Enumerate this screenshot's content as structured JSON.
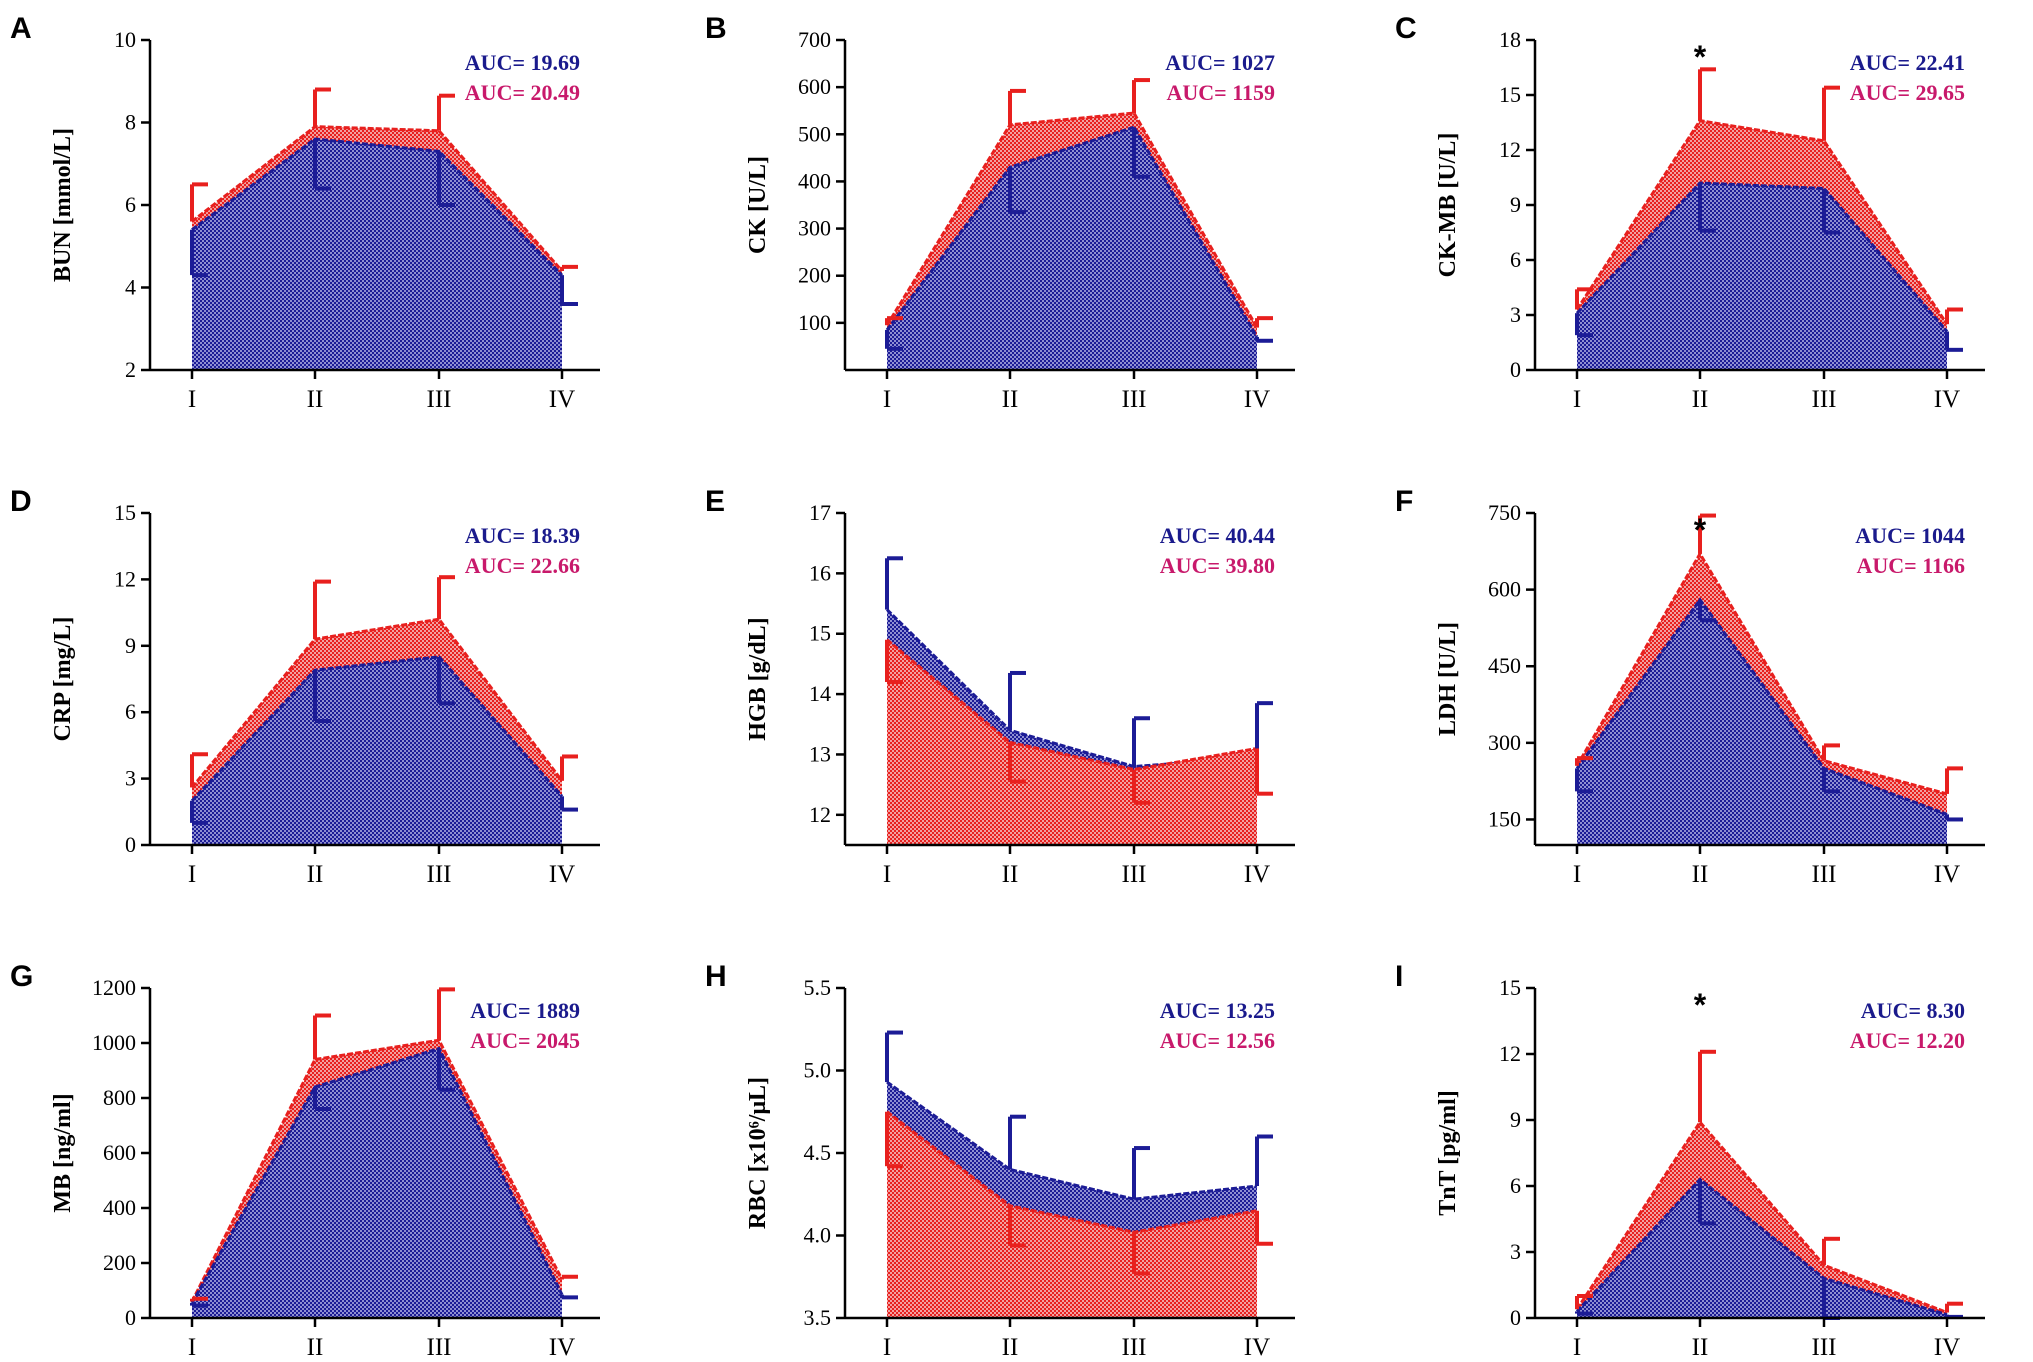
{
  "chart_data": [
    {
      "panel": "A",
      "type": "area",
      "ylabel": "BUN [mmol/L]",
      "categories": [
        "I",
        "II",
        "III",
        "IV"
      ],
      "ylim": [
        2,
        10
      ],
      "yticks": [
        "2",
        "4",
        "6",
        "8",
        "10"
      ],
      "series": [
        {
          "name": "blue",
          "values": [
            5.4,
            7.6,
            7.3,
            4.3
          ],
          "errors": [
            1.1,
            1.2,
            1.3,
            0.7
          ],
          "auc": "AUC= 19.69",
          "error_dir": "down"
        },
        {
          "name": "red",
          "values": [
            5.6,
            7.9,
            7.8,
            4.4
          ],
          "errors": [
            0.9,
            0.9,
            0.85,
            0.1
          ],
          "auc": "AUC= 20.49",
          "error_dir": "up"
        }
      ],
      "annotations": []
    },
    {
      "panel": "B",
      "type": "area",
      "ylabel": "CK [U/L]",
      "categories": [
        "I",
        "II",
        "III",
        "IV"
      ],
      "ylim": [
        0,
        700
      ],
      "yticks": [
        "100",
        "200",
        "300",
        "400",
        "500",
        "600",
        "700"
      ],
      "series": [
        {
          "name": "blue",
          "values": [
            85,
            430,
            515,
            70
          ],
          "errors": [
            40,
            95,
            105,
            8
          ],
          "auc": "AUC= 1027",
          "error_dir": "down"
        },
        {
          "name": "red",
          "values": [
            95,
            520,
            545,
            90
          ],
          "errors": [
            15,
            72,
            70,
            20
          ],
          "auc": "AUC= 1159",
          "error_dir": "up"
        }
      ],
      "annotations": []
    },
    {
      "panel": "C",
      "type": "area",
      "ylabel": "CK-MB [U/L]",
      "categories": [
        "I",
        "II",
        "III",
        "IV"
      ],
      "ylim": [
        0,
        18
      ],
      "yticks": [
        "0",
        "3",
        "6",
        "9",
        "12",
        "15",
        "18"
      ],
      "series": [
        {
          "name": "blue",
          "values": [
            3.1,
            10.2,
            9.9,
            2.1
          ],
          "errors": [
            1.2,
            2.6,
            2.4,
            1.0
          ],
          "auc": "AUC= 22.41",
          "error_dir": "down"
        },
        {
          "name": "red",
          "values": [
            3.3,
            13.6,
            12.5,
            2.5
          ],
          "errors": [
            1.1,
            2.8,
            2.9,
            0.8
          ],
          "auc": "AUC= 29.65",
          "error_dir": "up"
        }
      ],
      "annotations": [
        {
          "category": "II",
          "text": "*"
        }
      ]
    },
    {
      "panel": "D",
      "type": "area",
      "ylabel": "CRP [mg/L]",
      "categories": [
        "I",
        "II",
        "III",
        "IV"
      ],
      "ylim": [
        0,
        15
      ],
      "yticks": [
        "0",
        "3",
        "6",
        "9",
        "12",
        "15"
      ],
      "series": [
        {
          "name": "blue",
          "values": [
            2.0,
            7.9,
            8.5,
            2.2
          ],
          "errors": [
            1.0,
            2.3,
            2.1,
            0.6
          ],
          "auc": "AUC= 18.39",
          "error_dir": "down"
        },
        {
          "name": "red",
          "values": [
            2.6,
            9.3,
            10.2,
            2.9
          ],
          "errors": [
            1.5,
            2.6,
            1.9,
            1.1
          ],
          "auc": "AUC= 22.66",
          "error_dir": "up"
        }
      ],
      "annotations": []
    },
    {
      "panel": "E",
      "type": "area",
      "ylabel": "HGB [g/dL]",
      "categories": [
        "I",
        "II",
        "III",
        "IV"
      ],
      "ylim": [
        11.5,
        17
      ],
      "yticks": [
        "12",
        "13",
        "14",
        "15",
        "16",
        "17"
      ],
      "series": [
        {
          "name": "blue",
          "values": [
            15.4,
            13.4,
            12.8,
            12.95
          ],
          "errors": [
            0.85,
            0.95,
            0.8,
            0.9
          ],
          "auc": "AUC= 40.44",
          "error_dir": "up"
        },
        {
          "name": "red",
          "values": [
            14.9,
            13.2,
            12.75,
            13.1
          ],
          "errors": [
            0.7,
            0.65,
            0.55,
            0.75
          ],
          "auc": "AUC= 39.80",
          "error_dir": "down"
        }
      ],
      "annotations": []
    },
    {
      "panel": "F",
      "type": "area",
      "ylabel": "LDH [U/L]",
      "categories": [
        "I",
        "II",
        "III",
        "IV"
      ],
      "ylim": [
        100,
        750
      ],
      "yticks": [
        "150",
        "300",
        "450",
        "600",
        "750"
      ],
      "series": [
        {
          "name": "blue",
          "values": [
            250,
            580,
            250,
            160
          ],
          "errors": [
            45,
            40,
            45,
            10
          ],
          "auc": "AUC= 1044",
          "error_dir": "down"
        },
        {
          "name": "red",
          "values": [
            255,
            670,
            265,
            200
          ],
          "errors": [
            15,
            75,
            30,
            50
          ],
          "auc": "AUC= 1166",
          "error_dir": "up"
        }
      ],
      "annotations": [
        {
          "category": "II",
          "text": "*"
        }
      ]
    },
    {
      "panel": "G",
      "type": "area",
      "ylabel": "MB [ng/ml]",
      "categories": [
        "I",
        "II",
        "III",
        "IV"
      ],
      "ylim": [
        0,
        1200
      ],
      "yticks": [
        "0",
        "200",
        "400",
        "600",
        "800",
        "1000",
        "1200"
      ],
      "series": [
        {
          "name": "blue",
          "values": [
            55,
            840,
            980,
            85
          ],
          "errors": [
            10,
            80,
            150,
            10
          ],
          "auc": "AUC= 1889",
          "error_dir": "down"
        },
        {
          "name": "red",
          "values": [
            60,
            940,
            1010,
            140
          ],
          "errors": [
            10,
            160,
            185,
            10
          ],
          "auc": "AUC= 2045",
          "error_dir": "up"
        }
      ],
      "annotations": []
    },
    {
      "panel": "H",
      "type": "area",
      "ylabel": "RBC [x10⁶/μL]",
      "categories": [
        "I",
        "II",
        "III",
        "IV"
      ],
      "ylim": [
        3.5,
        5.5
      ],
      "yticks": [
        "3.5",
        "4.0",
        "4.5",
        "5.0",
        "5.5"
      ],
      "series": [
        {
          "name": "blue",
          "values": [
            4.93,
            4.4,
            4.22,
            4.3
          ],
          "errors": [
            0.3,
            0.32,
            0.31,
            0.3
          ],
          "auc": "AUC= 13.25",
          "error_dir": "up"
        },
        {
          "name": "red",
          "values": [
            4.75,
            4.18,
            4.02,
            4.15
          ],
          "errors": [
            0.33,
            0.24,
            0.25,
            0.2
          ],
          "auc": "AUC= 12.56",
          "error_dir": "down"
        }
      ],
      "annotations": []
    },
    {
      "panel": "I",
      "type": "area",
      "ylabel": "TnT [pg/ml]",
      "categories": [
        "I",
        "II",
        "III",
        "IV"
      ],
      "ylim": [
        0,
        15
      ],
      "yticks": [
        "0",
        "3",
        "6",
        "9",
        "12",
        "15"
      ],
      "series": [
        {
          "name": "blue",
          "values": [
            0.3,
            6.3,
            1.8,
            0.15
          ],
          "errors": [
            0.1,
            2.0,
            1.8,
            0.1
          ],
          "auc": "AUC= 8.30",
          "error_dir": "down"
        },
        {
          "name": "red",
          "values": [
            0.4,
            8.9,
            2.4,
            0.25
          ],
          "errors": [
            0.6,
            3.2,
            1.2,
            0.4
          ],
          "auc": "AUC= 12.20",
          "error_dir": "up"
        }
      ],
      "annotations": [
        {
          "category": "II",
          "text": "*"
        }
      ]
    }
  ],
  "colors": {
    "blue": "#1c1c96",
    "blue_light": "#8f8fd2",
    "red": "#e8201e",
    "red_light": "#f2a0a0",
    "auc_blue": "#1a1a8c",
    "auc_red": "#c8196b"
  }
}
